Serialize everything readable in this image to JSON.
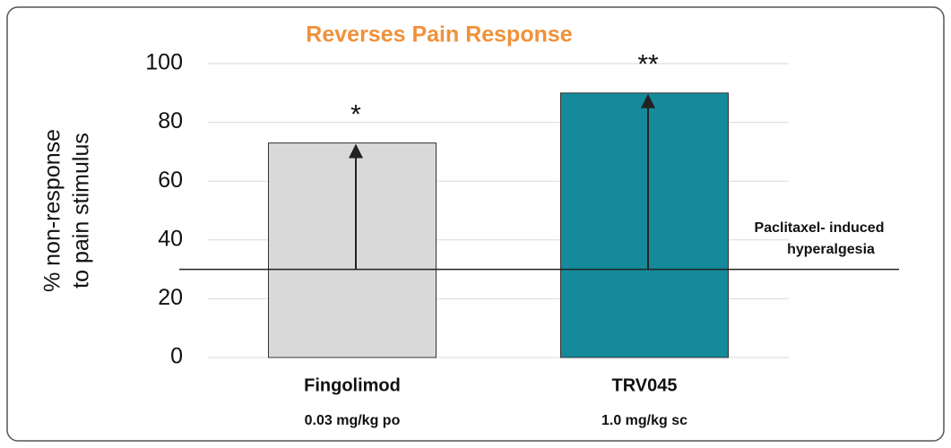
{
  "chart_data": {
    "type": "bar",
    "title": "Reverses Pain Response",
    "ylabel": [
      "% non-response",
      "to pain stimulus"
    ],
    "categories": [
      "Fingolimod",
      "TRV045"
    ],
    "category_sublabels": [
      "0.03 mg/kg po",
      "1.0 mg/kg sc"
    ],
    "values": [
      73,
      90
    ],
    "colors": [
      "#d9d9d9",
      "#148a9b"
    ],
    "annotations": [
      "*",
      "**"
    ],
    "reference_line": {
      "value": 30,
      "label": [
        "Paclitaxel- induced",
        "hyperalgesia"
      ]
    },
    "ylim": [
      0,
      100
    ],
    "yticks": [
      0,
      20,
      40,
      60,
      80,
      100
    ],
    "grid": true
  }
}
